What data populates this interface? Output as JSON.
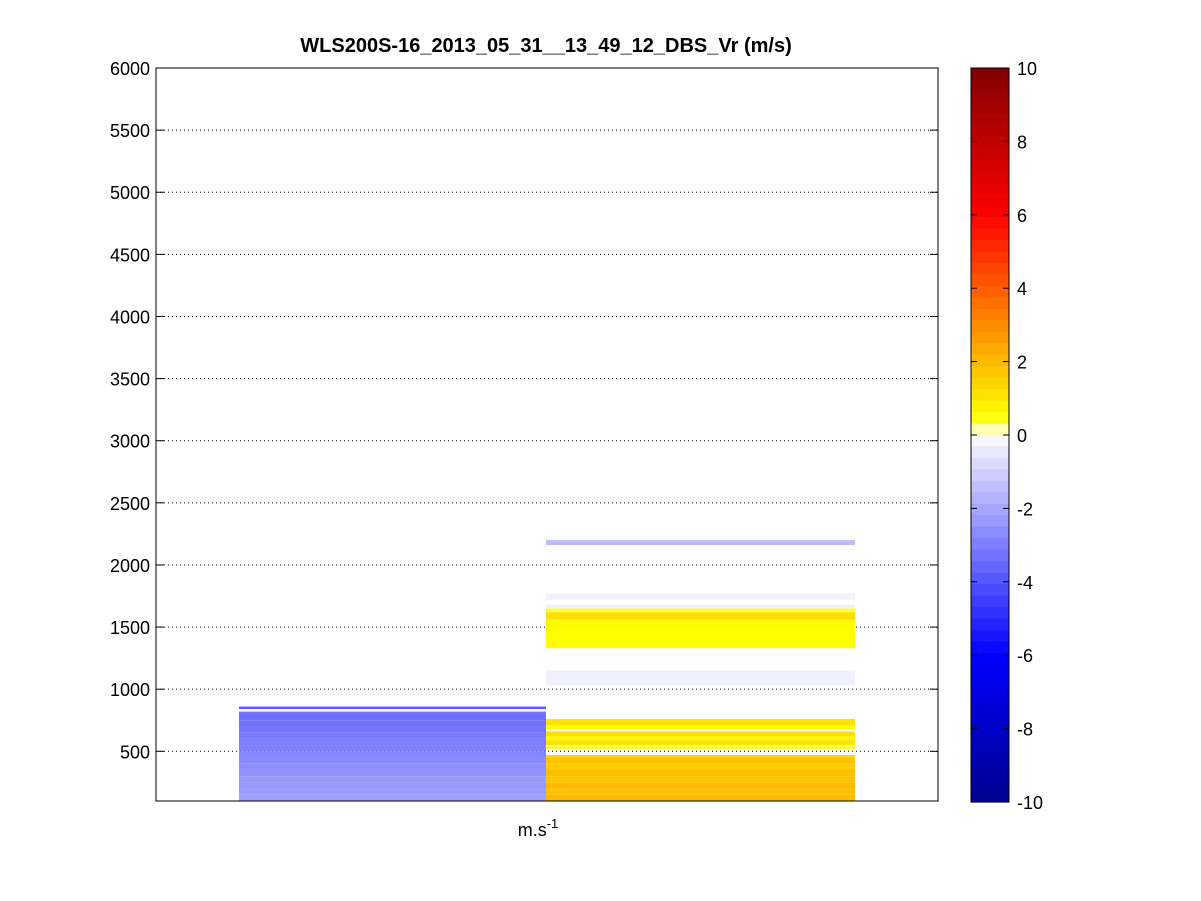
{
  "chart_data": {
    "type": "heatmap",
    "title": "WLS200S-16_2013_05_31__13_49_12_DBS_Vr (m/s)",
    "xlabel": "m.s",
    "xlabel_superscript": "-1",
    "ylabel": "",
    "ylim": [
      100,
      6000
    ],
    "yticks": [
      500,
      1000,
      1500,
      2000,
      2500,
      3000,
      3500,
      4000,
      4500,
      5000,
      5500,
      6000
    ],
    "grid": "y-dotted",
    "columns": [
      {
        "cells": [
          {
            "y0": 100,
            "y1": 150,
            "v": -2.2
          },
          {
            "y0": 150,
            "y1": 200,
            "v": -2.3
          },
          {
            "y0": 200,
            "y1": 250,
            "v": -2.4
          },
          {
            "y0": 250,
            "y1": 300,
            "v": -2.3
          },
          {
            "y0": 300,
            "y1": 350,
            "v": -2.5
          },
          {
            "y0": 350,
            "y1": 400,
            "v": -2.6
          },
          {
            "y0": 400,
            "y1": 450,
            "v": -2.7
          },
          {
            "y0": 450,
            "y1": 500,
            "v": -2.8
          },
          {
            "y0": 500,
            "y1": 550,
            "v": -2.9
          },
          {
            "y0": 550,
            "y1": 600,
            "v": -3.0
          },
          {
            "y0": 600,
            "y1": 650,
            "v": -3.1
          },
          {
            "y0": 650,
            "y1": 700,
            "v": -3.2
          },
          {
            "y0": 700,
            "y1": 750,
            "v": -3.3
          },
          {
            "y0": 750,
            "y1": 800,
            "v": -3.4
          },
          {
            "y0": 800,
            "y1": 820,
            "v": -3.2
          },
          {
            "y0": 820,
            "y1": 840,
            "v": 0.0
          },
          {
            "y0": 840,
            "y1": 860,
            "v": -3.8
          }
        ]
      },
      {
        "cells": [
          {
            "y0": 100,
            "y1": 150,
            "v": 2.0
          },
          {
            "y0": 150,
            "y1": 200,
            "v": 1.8
          },
          {
            "y0": 200,
            "y1": 250,
            "v": 2.0
          },
          {
            "y0": 250,
            "y1": 300,
            "v": 1.7
          },
          {
            "y0": 300,
            "y1": 350,
            "v": 1.9
          },
          {
            "y0": 350,
            "y1": 400,
            "v": 1.6
          },
          {
            "y0": 400,
            "y1": 450,
            "v": 1.8
          },
          {
            "y0": 450,
            "y1": 470,
            "v": 1.4
          },
          {
            "y0": 520,
            "y1": 540,
            "v": 0.6
          },
          {
            "y0": 550,
            "y1": 590,
            "v": 1.1
          },
          {
            "y0": 590,
            "y1": 620,
            "v": 0.6
          },
          {
            "y0": 620,
            "y1": 660,
            "v": 1.2
          },
          {
            "y0": 680,
            "y1": 710,
            "v": 0.5
          },
          {
            "y0": 710,
            "y1": 760,
            "v": 1.1
          },
          {
            "y0": 1030,
            "y1": 1150,
            "v": -0.3
          },
          {
            "y0": 1330,
            "y1": 1500,
            "v": 0.5
          },
          {
            "y0": 1500,
            "y1": 1560,
            "v": 0.6
          },
          {
            "y0": 1560,
            "y1": 1620,
            "v": 1.2
          },
          {
            "y0": 1620,
            "y1": 1650,
            "v": 0.4
          },
          {
            "y0": 1650,
            "y1": 1680,
            "v": -0.3
          },
          {
            "y0": 1720,
            "y1": 1770,
            "v": -0.3
          },
          {
            "y0": 2160,
            "y1": 2200,
            "v": -1.5
          }
        ]
      }
    ],
    "colorbar": {
      "min": -10,
      "max": 10,
      "ticks": [
        -10,
        -8,
        -6,
        -4,
        -2,
        0,
        2,
        4,
        6,
        8,
        10
      ],
      "colors": {
        "neg_end": "#00008f",
        "neg_mid": "#0000ff",
        "neg_near": "#e6e6ff",
        "zero": "#ffffff",
        "pos_near": "#ffff00",
        "pos_mid": "#ff0000",
        "pos_end": "#800000"
      }
    }
  }
}
